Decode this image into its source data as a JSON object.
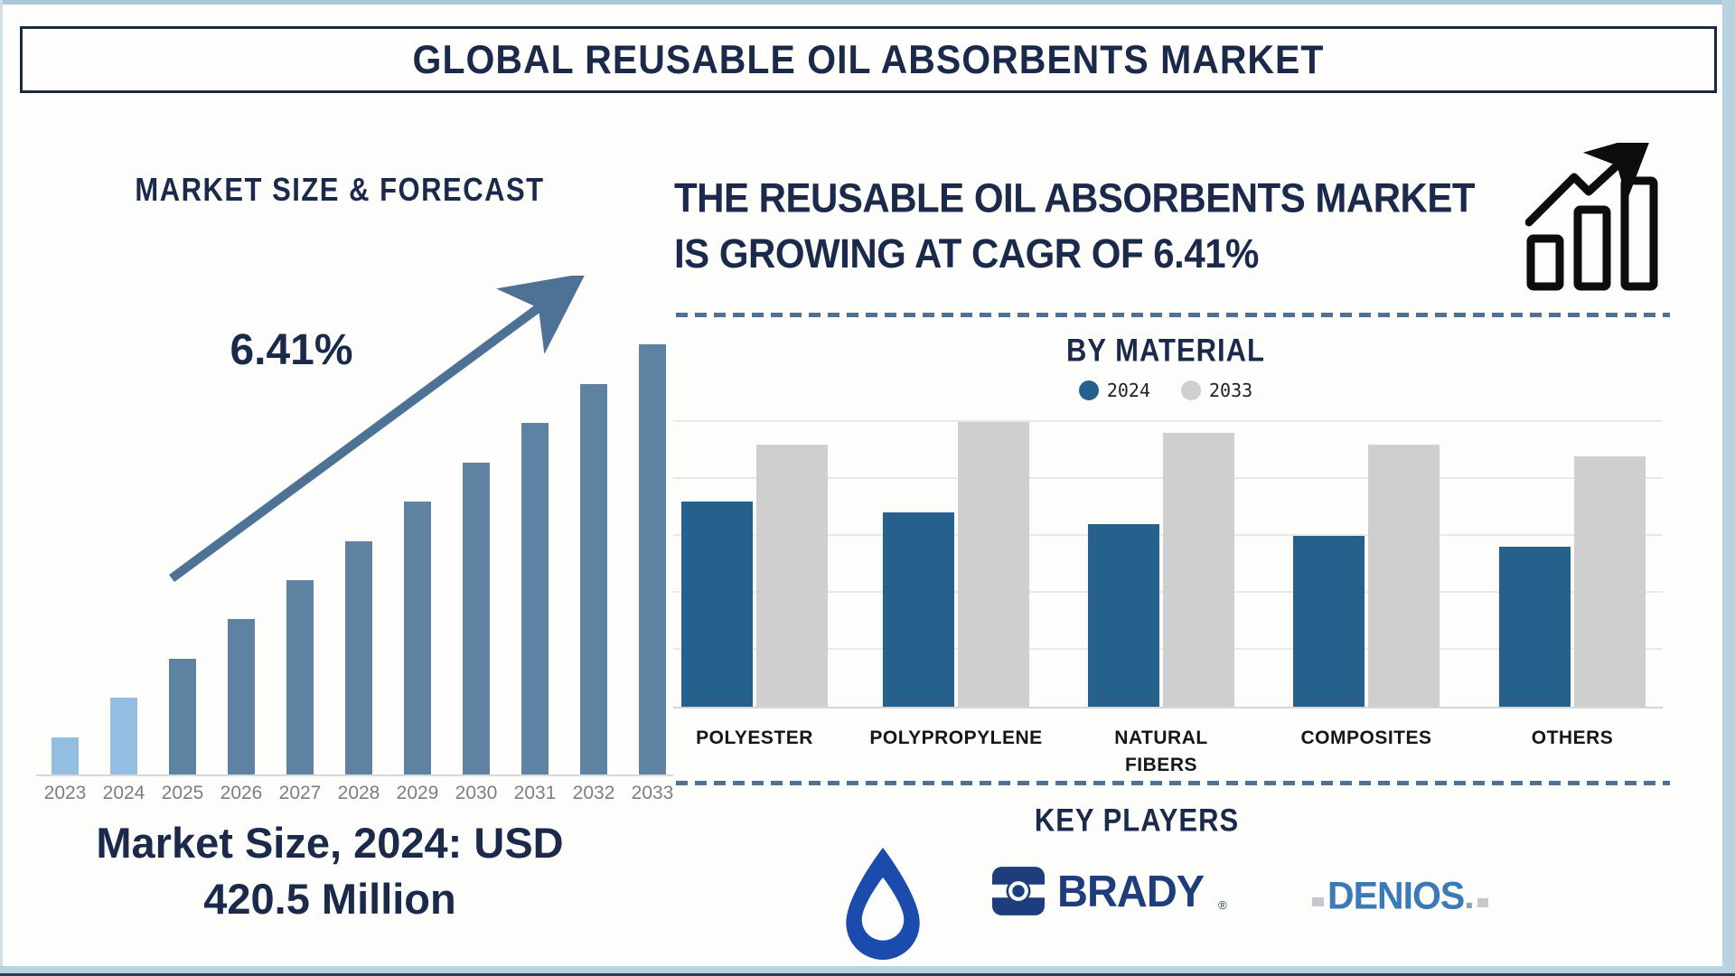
{
  "title_bar": {
    "title": "GLOBAL REUSABLE OIL ABSORBENTS MARKET"
  },
  "colors": {
    "navy_text": "#1b2a4a",
    "steel_arrow": "#4d7296",
    "left_bar_historic": "#93bde1",
    "left_bar_forecast": "#5e82a2",
    "right_bar_2024": "#26618e",
    "right_bar_2033": "#cfcfcf",
    "frame": "#b7d3e0",
    "year_label_gray": "#7e7e7e"
  },
  "icons": {
    "growth_chart": "growth-chart-icon",
    "trend_arrow": "up-right-trend-arrow-icon",
    "droplet": "water-droplet-logo-icon"
  },
  "left_panel": {
    "heading": "MARKET SIZE & FORECAST",
    "cagr_label": "6.41%",
    "market_size_caption_line1": "Market Size, 2024: USD",
    "market_size_caption_line2": "420.5 Million"
  },
  "right_panel": {
    "headline_line1": "THE REUSABLE OIL ABSORBENTS MARKET",
    "headline_line2": "IS GROWING AT CAGR OF 6.41%",
    "section_by_material": {
      "title": "BY MATERIAL",
      "legend": [
        {
          "label": "2024",
          "color": "#26618e"
        },
        {
          "label": "2033",
          "color": "#cfcfcf"
        }
      ]
    },
    "section_key_players": {
      "title": "KEY PLAYERS",
      "players": [
        {
          "name": "water-droplet-logo",
          "type": "icon"
        },
        {
          "name": "BRADY",
          "registered": "®"
        },
        {
          "name": "DENIOS",
          "suffix": "."
        }
      ]
    }
  },
  "chart_data": [
    {
      "type": "bar",
      "title": "MARKET SIZE & FORECAST",
      "annotation": "6.41%",
      "highlight": "Market Size, 2024: USD 420.5 Million",
      "categories": [
        "2023",
        "2024",
        "2025",
        "2026",
        "2027",
        "2028",
        "2029",
        "2030",
        "2031",
        "2032",
        "2033"
      ],
      "values": [
        41,
        85,
        128,
        172,
        215,
        258,
        302,
        345,
        389,
        432,
        476
      ],
      "value_unit": "relative-bar-height-px (no numeric axis shown)",
      "historic_years": [
        "2023",
        "2024"
      ],
      "bar_colors": {
        "historic": "#93bde1",
        "forecast": "#5e82a2"
      },
      "axes": "none",
      "grid": false
    },
    {
      "type": "bar",
      "title": "BY MATERIAL",
      "categories": [
        "POLYESTER",
        "POLYPROPYLENE",
        "NATURAL FIBERS",
        "COMPOSITES",
        "OTHERS"
      ],
      "series": [
        {
          "name": "2024",
          "color": "#26618e",
          "values": [
            227,
            215,
            202,
            189,
            177
          ]
        },
        {
          "name": "2033",
          "color": "#cfcfcf",
          "values": [
            290,
            315,
            303,
            290,
            277
          ]
        }
      ],
      "value_unit": "relative-bar-height-px (no numeric axis shown)",
      "legend_position": "top",
      "grid": true,
      "gridline_count": 6
    }
  ]
}
